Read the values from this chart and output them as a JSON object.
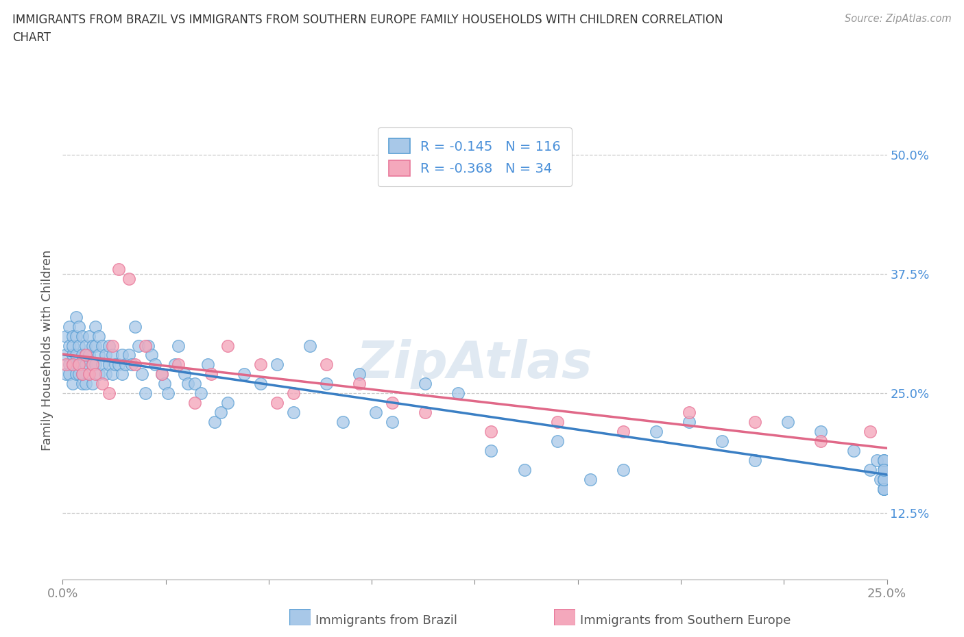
{
  "title_line1": "IMMIGRANTS FROM BRAZIL VS IMMIGRANTS FROM SOUTHERN EUROPE FAMILY HOUSEHOLDS WITH CHILDREN CORRELATION",
  "title_line2": "CHART",
  "source": "Source: ZipAtlas.com",
  "ylabel": "Family Households with Children",
  "brazil_label": "Immigrants from Brazil",
  "se_label": "Immigrants from Southern Europe",
  "brazil_R": -0.145,
  "brazil_N": 116,
  "se_R": -0.368,
  "se_N": 34,
  "brazil_color": "#a8c8e8",
  "se_color": "#f4a8bc",
  "brazil_edge_color": "#5a9fd4",
  "se_edge_color": "#e8789a",
  "brazil_line_color": "#3a7fc4",
  "se_line_color": "#e06888",
  "watermark_color": "#c8d8e8",
  "title_color": "#333333",
  "source_color": "#999999",
  "label_color": "#555555",
  "tick_color": "#4a90d9",
  "grid_color": "#cccccc",
  "xlim": [
    0.0,
    0.25
  ],
  "ylim": [
    0.055,
    0.535
  ],
  "brazil_x": [
    0.001,
    0.001,
    0.001,
    0.002,
    0.002,
    0.002,
    0.002,
    0.003,
    0.003,
    0.003,
    0.003,
    0.003,
    0.004,
    0.004,
    0.004,
    0.004,
    0.005,
    0.005,
    0.005,
    0.005,
    0.006,
    0.006,
    0.006,
    0.006,
    0.006,
    0.007,
    0.007,
    0.007,
    0.007,
    0.008,
    0.008,
    0.008,
    0.009,
    0.009,
    0.009,
    0.01,
    0.01,
    0.01,
    0.011,
    0.011,
    0.011,
    0.012,
    0.012,
    0.013,
    0.013,
    0.014,
    0.014,
    0.015,
    0.015,
    0.016,
    0.017,
    0.018,
    0.018,
    0.019,
    0.02,
    0.021,
    0.022,
    0.023,
    0.024,
    0.025,
    0.026,
    0.027,
    0.028,
    0.03,
    0.031,
    0.032,
    0.034,
    0.035,
    0.037,
    0.038,
    0.04,
    0.042,
    0.044,
    0.046,
    0.048,
    0.05,
    0.055,
    0.06,
    0.065,
    0.07,
    0.075,
    0.08,
    0.085,
    0.09,
    0.095,
    0.1,
    0.11,
    0.12,
    0.13,
    0.14,
    0.15,
    0.16,
    0.17,
    0.18,
    0.19,
    0.2,
    0.21,
    0.22,
    0.23,
    0.24,
    0.245,
    0.247,
    0.248,
    0.249,
    0.249,
    0.249,
    0.249,
    0.249,
    0.249,
    0.249,
    0.249,
    0.249,
    0.249,
    0.249,
    0.249,
    0.249
  ],
  "brazil_y": [
    0.27,
    0.29,
    0.31,
    0.28,
    0.3,
    0.32,
    0.27,
    0.26,
    0.29,
    0.31,
    0.28,
    0.3,
    0.27,
    0.29,
    0.31,
    0.33,
    0.27,
    0.28,
    0.3,
    0.32,
    0.26,
    0.28,
    0.29,
    0.31,
    0.27,
    0.26,
    0.28,
    0.3,
    0.29,
    0.27,
    0.29,
    0.31,
    0.26,
    0.28,
    0.3,
    0.28,
    0.3,
    0.32,
    0.27,
    0.29,
    0.31,
    0.28,
    0.3,
    0.27,
    0.29,
    0.28,
    0.3,
    0.27,
    0.29,
    0.28,
    0.28,
    0.27,
    0.29,
    0.28,
    0.29,
    0.28,
    0.32,
    0.3,
    0.27,
    0.25,
    0.3,
    0.29,
    0.28,
    0.27,
    0.26,
    0.25,
    0.28,
    0.3,
    0.27,
    0.26,
    0.26,
    0.25,
    0.28,
    0.22,
    0.23,
    0.24,
    0.27,
    0.26,
    0.28,
    0.23,
    0.3,
    0.26,
    0.22,
    0.27,
    0.23,
    0.22,
    0.26,
    0.25,
    0.19,
    0.17,
    0.2,
    0.16,
    0.17,
    0.21,
    0.22,
    0.2,
    0.18,
    0.22,
    0.21,
    0.19,
    0.17,
    0.18,
    0.16,
    0.15,
    0.17,
    0.16,
    0.18,
    0.15,
    0.16,
    0.17,
    0.16,
    0.17,
    0.15,
    0.16,
    0.18,
    0.17
  ],
  "se_x": [
    0.001,
    0.003,
    0.005,
    0.006,
    0.007,
    0.008,
    0.009,
    0.01,
    0.012,
    0.014,
    0.015,
    0.017,
    0.02,
    0.022,
    0.025,
    0.03,
    0.035,
    0.04,
    0.045,
    0.05,
    0.06,
    0.065,
    0.07,
    0.08,
    0.09,
    0.1,
    0.11,
    0.13,
    0.15,
    0.17,
    0.19,
    0.21,
    0.23,
    0.245
  ],
  "se_y": [
    0.28,
    0.28,
    0.28,
    0.27,
    0.29,
    0.27,
    0.28,
    0.27,
    0.26,
    0.25,
    0.3,
    0.38,
    0.37,
    0.28,
    0.3,
    0.27,
    0.28,
    0.24,
    0.27,
    0.3,
    0.28,
    0.24,
    0.25,
    0.28,
    0.26,
    0.24,
    0.23,
    0.21,
    0.22,
    0.21,
    0.23,
    0.22,
    0.2,
    0.21
  ]
}
